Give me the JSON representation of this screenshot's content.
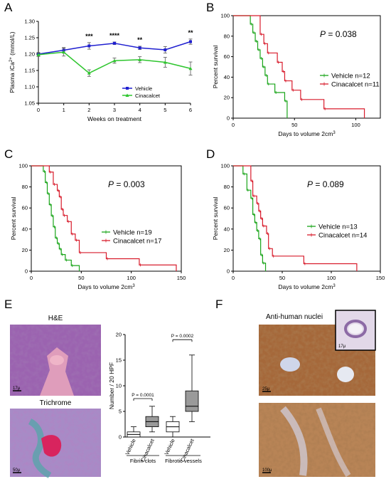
{
  "panels": {
    "A": "A",
    "B": "B",
    "C": "C",
    "D": "D",
    "E": "E",
    "F": "F"
  },
  "colors": {
    "vehicle_line": "#1f1fd0",
    "cinacalcet_line": "#2ec52e",
    "km_vehicle": "#1aa51a",
    "km_cinacalcet": "#d81c2c"
  },
  "chart_data": [
    {
      "id": "A",
      "type": "line",
      "xlabel": "Weeks on treatment",
      "ylabel": "Plasma iCa2+ (mmol/L)",
      "ylabel_main": "Plasma iCa",
      "ylabel_sup": "2+",
      "ylabel_tail": " (mmol/L)",
      "xlim": [
        0,
        6
      ],
      "ylim": [
        1.05,
        1.3
      ],
      "xticks": [
        "0",
        "1",
        "2",
        "3",
        "4",
        "5",
        "6"
      ],
      "yticks": [
        "1.05",
        "1.10",
        "1.15",
        "1.20",
        "1.25",
        "1.30"
      ],
      "x": [
        0,
        1,
        2,
        3,
        4,
        5,
        6
      ],
      "series": [
        {
          "name": "Vehicle",
          "values": [
            1.2,
            1.212,
            1.225,
            1.233,
            1.219,
            1.213,
            1.238
          ],
          "err": [
            0.005,
            0.008,
            0.01,
            0.004,
            0.005,
            0.01,
            0.008
          ]
        },
        {
          "name": "Cinacalcet",
          "values": [
            1.198,
            1.206,
            1.142,
            1.18,
            1.183,
            1.175,
            1.156
          ],
          "err": [
            0.005,
            0.012,
            0.01,
            0.008,
            0.009,
            0.015,
            0.02
          ]
        }
      ],
      "annotations": [
        {
          "x": 2,
          "text": "***"
        },
        {
          "x": 3,
          "text": "****"
        },
        {
          "x": 4,
          "text": "**"
        },
        {
          "x": 6,
          "text": "**"
        }
      ],
      "legend_position": "bottom-right"
    },
    {
      "id": "B",
      "type": "line",
      "xlabel": "Days to volume 2cm3",
      "xlabel_main": "Days to volume 2cm",
      "xlabel_sup": "3",
      "ylabel": "Percent survival",
      "xlim": [
        0,
        120
      ],
      "ylim": [
        0,
        100
      ],
      "xticks": [
        "0",
        "50",
        "100"
      ],
      "xtick_values": [
        0,
        50,
        100
      ],
      "yticks": [
        "0",
        "20",
        "40",
        "60",
        "80",
        "100"
      ],
      "pvalue_label": "P",
      "pvalue": " = 0.038",
      "series": [
        {
          "name": "Vehicle n=12",
          "x": [
            0,
            14,
            16,
            18,
            20,
            22,
            24,
            26,
            28,
            34,
            42,
            44
          ],
          "y": [
            100,
            91.7,
            83.3,
            75,
            66.7,
            58.3,
            50,
            41.7,
            33.3,
            25,
            16.7,
            0
          ]
        },
        {
          "name": "Cinacalcet n=11",
          "x": [
            0,
            22,
            25,
            28,
            36,
            40,
            42,
            48,
            55,
            74,
            107
          ],
          "y": [
            100,
            81.8,
            72.7,
            63.6,
            54.5,
            45.5,
            36.4,
            27.3,
            18.2,
            9.1,
            0
          ]
        }
      ],
      "legend_position": "bottom-right"
    },
    {
      "id": "C",
      "type": "line",
      "xlabel": "Days to volume 2cm3",
      "xlabel_main": "Days to volume 2cm",
      "xlabel_sup": "3",
      "ylabel": "Percent survival",
      "xlim": [
        0,
        150
      ],
      "ylim": [
        0,
        100
      ],
      "xticks": [
        "0",
        "50",
        "100",
        "150"
      ],
      "xtick_values": [
        0,
        50,
        100,
        150
      ],
      "yticks": [
        "0",
        "20",
        "40",
        "60",
        "80",
        "100"
      ],
      "pvalue_label": "P",
      "pvalue": " = 0.003",
      "series": [
        {
          "name": "Vehicle n=19",
          "x": [
            0,
            12,
            14,
            16,
            18,
            20,
            22,
            24,
            26,
            28,
            30,
            34,
            40,
            48
          ],
          "y": [
            100,
            94.7,
            84.2,
            73.7,
            63.2,
            52.6,
            42.1,
            31.6,
            26.3,
            21.1,
            15.8,
            10.5,
            5.3,
            0
          ]
        },
        {
          "name": "Cinacalcet n=17",
          "x": [
            0,
            18,
            22,
            26,
            28,
            30,
            32,
            36,
            40,
            44,
            48,
            75,
            108,
            145
          ],
          "y": [
            100,
            94.1,
            82.4,
            76.5,
            70.6,
            58.8,
            52.9,
            47.1,
            35.3,
            29.4,
            17.6,
            11.8,
            5.9,
            0
          ]
        }
      ],
      "legend_position": "bottom-right"
    },
    {
      "id": "D",
      "type": "line",
      "xlabel": "Days to volume 2cm3",
      "xlabel_main": "Days to volume 2cm",
      "xlabel_sup": "3",
      "ylabel": "Percent survival",
      "xlim": [
        0,
        150
      ],
      "ylim": [
        0,
        100
      ],
      "xticks": [
        "0",
        "50",
        "100",
        "150"
      ],
      "xtick_values": [
        0,
        50,
        100,
        150
      ],
      "yticks": [
        "0",
        "20",
        "40",
        "60",
        "80",
        "100"
      ],
      "pvalue_label": "P",
      "pvalue": " = 0.089",
      "series": [
        {
          "name": "Vehicle n=13",
          "x": [
            0,
            10,
            14,
            18,
            20,
            22,
            24,
            26,
            28,
            30,
            33
          ],
          "y": [
            100,
            92.3,
            76.9,
            69.2,
            53.8,
            46.2,
            38.5,
            30.8,
            15.4,
            7.7,
            0
          ]
        },
        {
          "name": "Cinacalcet n=14",
          "x": [
            0,
            18,
            20,
            24,
            26,
            28,
            30,
            34,
            36,
            40,
            72,
            126
          ],
          "y": [
            100,
            85.7,
            71.4,
            64.3,
            57.1,
            50,
            42.9,
            35.7,
            21.4,
            14.3,
            7.1,
            0
          ]
        }
      ],
      "legend_position": "bottom-right"
    },
    {
      "id": "E",
      "type": "bar",
      "ylabel": "Number / 20 HPF",
      "ylim": [
        0,
        20
      ],
      "yticks": [
        "0",
        "5",
        "10",
        "15",
        "20"
      ],
      "categories": [
        "Vehicle",
        "Cinacalcet",
        "Vehicle",
        "Cinacalcet"
      ],
      "groups": [
        "Fibrin clots",
        "Fibrotic vessels"
      ],
      "boxes": [
        {
          "min": 0,
          "q1": 0,
          "median": 0.5,
          "q3": 1,
          "max": 2
        },
        {
          "min": 1,
          "q1": 2,
          "median": 3,
          "q3": 4,
          "max": 6
        },
        {
          "min": 0,
          "q1": 1,
          "median": 2,
          "q3": 3,
          "max": 4
        },
        {
          "min": 3,
          "q1": 5,
          "median": 6,
          "q3": 9,
          "max": 16
        }
      ],
      "comparisons": [
        {
          "label": "P = 0.0001",
          "from": 0,
          "to": 1
        },
        {
          "label": "P = 0.0002",
          "from": 2,
          "to": 3
        }
      ]
    }
  ],
  "images": {
    "he_title": "H&E",
    "he_scale": "17μ",
    "trichrome_title": "Trichrome",
    "trichrome_scale": "50μ",
    "nuclei_title": "Anti-human nuclei",
    "inset_scale": "17μ",
    "f_top_scale": "25μ",
    "f_bottom_scale": "100μ"
  }
}
